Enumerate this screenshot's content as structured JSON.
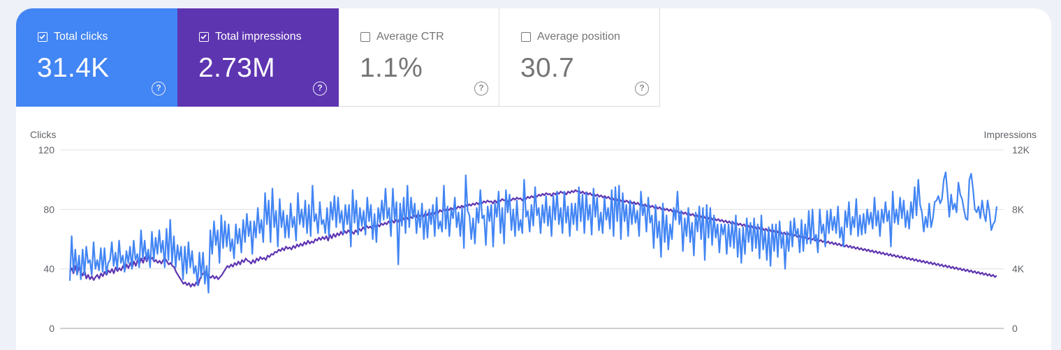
{
  "metrics": [
    {
      "label": "Total clicks",
      "value": "31.4K",
      "checked": true,
      "color": "#4285f4"
    },
    {
      "label": "Total impressions",
      "value": "2.73M",
      "checked": true,
      "color": "#5e35b1"
    },
    {
      "label": "Average CTR",
      "value": "1.1%",
      "checked": false,
      "color": "#ffffff"
    },
    {
      "label": "Average position",
      "value": "30.7",
      "checked": false,
      "color": "#ffffff"
    }
  ],
  "help_icon": "help-circle-icon",
  "chart_data": {
    "type": "line",
    "left_axis_label": "Clicks",
    "right_axis_label": "Impressions",
    "left_ticks": [
      "120",
      "80",
      "40",
      "0"
    ],
    "right_ticks": [
      "12K",
      "8K",
      "4K",
      "0"
    ],
    "left_range": [
      0,
      120
    ],
    "right_range": [
      0,
      12000
    ],
    "grid": true,
    "series": [
      {
        "name": "Clicks",
        "axis": "left",
        "color": "#4285f4",
        "values": [
          32,
          62,
          38,
          53,
          36,
          49,
          33,
          53,
          36,
          55,
          44,
          46,
          36,
          58,
          40,
          46,
          39,
          54,
          38,
          54,
          37,
          44,
          46,
          58,
          42,
          51,
          40,
          59,
          44,
          49,
          38,
          52,
          44,
          55,
          40,
          59,
          46,
          50,
          41,
          66,
          47,
          59,
          46,
          53,
          41,
          65,
          46,
          61,
          50,
          66,
          51,
          59,
          41,
          67,
          46,
          73,
          44,
          62,
          41,
          56,
          46,
          55,
          33,
          55,
          37,
          58,
          41,
          52,
          37,
          42,
          29,
          51,
          34,
          51,
          30,
          42,
          24,
          66,
          50,
          72,
          56,
          66,
          44,
          76,
          54,
          72,
          55,
          70,
          52,
          60,
          47,
          70,
          57,
          67,
          51,
          73,
          58,
          77,
          62,
          72,
          50,
          72,
          61,
          81,
          64,
          73,
          58,
          91,
          70,
          86,
          58,
          94,
          68,
          79,
          55,
          87,
          68,
          79,
          61,
          76,
          61,
          84,
          68,
          75,
          59,
          91,
          70,
          80,
          68,
          86,
          64,
          83,
          62,
          96,
          72,
          77,
          64,
          85,
          70,
          73,
          64,
          81,
          62,
          85,
          73,
          89,
          68,
          88,
          71,
          79,
          64,
          83,
          70,
          83,
          55,
          93,
          71,
          86,
          63,
          81,
          69,
          79,
          63,
          88,
          72,
          83,
          60,
          77,
          58,
          81,
          71,
          86,
          73,
          94,
          74,
          81,
          62,
          94,
          73,
          85,
          43,
          84,
          69,
          88,
          64,
          96,
          68,
          88,
          74,
          84,
          64,
          79,
          68,
          84,
          60,
          79,
          61,
          80,
          70,
          83,
          62,
          88,
          67,
          72,
          65,
          96,
          67,
          82,
          62,
          80,
          74,
          88,
          68,
          78,
          62,
          81,
          54,
          103,
          79,
          76,
          60,
          74,
          57,
          81,
          71,
          93,
          74,
          76,
          56,
          82,
          72,
          83,
          55,
          84,
          75,
          92,
          64,
          81,
          57,
          93,
          78,
          90,
          66,
          80,
          62,
          86,
          66,
          73,
          64,
          100,
          75,
          79,
          65,
          83,
          69,
          95,
          76,
          81,
          64,
          83,
          71,
          89,
          69,
          82,
          62,
          89,
          73,
          92,
          70,
          81,
          64,
          92,
          71,
          82,
          62,
          84,
          70,
          84,
          66,
          95,
          72,
          90,
          64,
          91,
          73,
          83,
          63,
          94,
          75,
          88,
          66,
          78,
          64,
          88,
          73,
          81,
          67,
          93,
          62,
          95,
          72,
          96,
          60,
          91,
          72,
          83,
          62,
          86,
          70,
          84,
          71,
          79,
          62,
          92,
          76,
          83,
          65,
          88,
          71,
          76,
          54,
          83,
          61,
          72,
          48,
          84,
          58,
          76,
          53,
          70,
          60,
          81,
          73,
          92,
          70,
          79,
          52,
          74,
          62,
          81,
          58,
          71,
          49,
          78,
          65,
          82,
          60,
          81,
          46,
          83,
          61,
          81,
          56,
          76,
          61,
          70,
          51,
          70,
          63,
          70,
          50,
          70,
          55,
          72,
          54,
          76,
          48,
          67,
          44,
          68,
          50,
          74,
          58,
          71,
          52,
          74,
          54,
          70,
          47,
          76,
          53,
          66,
          46,
          68,
          42,
          70,
          52,
          70,
          48,
          72,
          54,
          64,
          40,
          65,
          52,
          72,
          55,
          74,
          62,
          67,
          51,
          73,
          52,
          70,
          57,
          79,
          57,
          80,
          59,
          63,
          51,
          80,
          64,
          70,
          55,
          79,
          64,
          80,
          66,
          75,
          64,
          82,
          61,
          68,
          55,
          79,
          68,
          85,
          63,
          75,
          68,
          87,
          62,
          76,
          63,
          77,
          64,
          80,
          70,
          78,
          67,
          88,
          69,
          79,
          62,
          80,
          71,
          85,
          72,
          79,
          55,
          92,
          71,
          80,
          70,
          88,
          74,
          86,
          68,
          79,
          67,
          85,
          74,
          95,
          76,
          100,
          83,
          78,
          65,
          75,
          68,
          84,
          68,
          74,
          85,
          86,
          89,
          84,
          87,
          100,
          105,
          91,
          75,
          90,
          80,
          84,
          78,
          98,
          90,
          87,
          80,
          74,
          73,
          100,
          104,
          94,
          80,
          78,
          82,
          74,
          86,
          77,
          72,
          86,
          78,
          66,
          70,
          72,
          82
        ]
      },
      {
        "name": "Impressions",
        "axis": "right",
        "color": "#5e35b1",
        "values": [
          3800,
          4050,
          3700,
          4200,
          3650,
          4100,
          3800,
          3550,
          3900,
          3350,
          3600,
          3300,
          3500,
          3250,
          3450,
          3600,
          3350,
          3700,
          3500,
          3800,
          3600,
          3900,
          3750,
          4000,
          3700,
          4100,
          3850,
          4050,
          3900,
          4200,
          3950,
          4300,
          4050,
          4400,
          4100,
          4500,
          4200,
          4600,
          4350,
          4700,
          4400,
          4800,
          4500,
          4900,
          4650,
          4750,
          4500,
          4600,
          4400,
          4550,
          4350,
          4600,
          4700,
          4500,
          4300,
          4400,
          4200,
          4100,
          3800,
          3600,
          3400,
          3200,
          3000,
          3100,
          2900,
          3050,
          2800,
          3000,
          2850,
          3100,
          2900,
          3300,
          3600,
          3700,
          3800,
          3650,
          3500,
          3400,
          3550,
          3350,
          3500,
          3300,
          3450,
          3600,
          3800,
          4000,
          4200,
          4100,
          4300,
          4150,
          4400,
          4250,
          4500,
          4300,
          4600,
          4450,
          4700,
          4550,
          4500,
          4350,
          4600,
          4400,
          4700,
          4550,
          4800,
          4650,
          4750,
          4600,
          4900,
          4800,
          5000,
          4950,
          5150,
          5100,
          5300,
          5200,
          5400,
          5250,
          5500,
          5350,
          5450,
          5300,
          5550,
          5400,
          5650,
          5500,
          5700,
          5550,
          5800,
          5650,
          5900,
          5700,
          5850,
          5750,
          6000,
          5900,
          6100,
          5950,
          6150,
          6000,
          6200,
          5900,
          6300,
          6050,
          6350,
          6150,
          6400,
          6250,
          6500,
          6300,
          6550,
          6400,
          6600,
          6450,
          6500,
          6350,
          6600,
          6450,
          6700,
          6550,
          6800,
          6650,
          6900,
          6750,
          6850,
          6700,
          6950,
          6800,
          7000,
          6850,
          7050,
          6950,
          7100,
          7000,
          7200,
          7050,
          7250,
          7100,
          7300,
          7150,
          7350,
          7200,
          7400,
          7250,
          7450,
          7300,
          7500,
          7400,
          7600,
          7450,
          7700,
          7550,
          7650,
          7500,
          7750,
          7600,
          7800,
          7650,
          7850,
          7700,
          7900,
          7750,
          7950,
          7850,
          8000,
          7900,
          8050,
          7950,
          8100,
          8000,
          8150,
          8050,
          8200,
          8100,
          8250,
          8150,
          8300,
          8200,
          8350,
          8250,
          8400,
          8300,
          8450,
          8350,
          8500,
          8400,
          8550,
          8450,
          8600,
          8500,
          8550,
          8400,
          8600,
          8450,
          8650,
          8550,
          8700,
          8600,
          8650,
          8500,
          8700,
          8600,
          8750,
          8650,
          8800,
          8700,
          8750,
          8600,
          8800,
          8700,
          8850,
          8750,
          8900,
          8800,
          8950,
          8850,
          9000,
          8900,
          9050,
          8950,
          9100,
          9000,
          9050,
          8900,
          9100,
          9000,
          9150,
          9050,
          9200,
          9100,
          9150,
          9000,
          9200,
          9100,
          9250,
          9150,
          9300,
          9200,
          9250,
          9100,
          9200,
          9050,
          9150,
          9000,
          9100,
          8950,
          9050,
          8900,
          9000,
          8850,
          8950,
          8800,
          8900,
          8750,
          8850,
          8700,
          8800,
          8650,
          8750,
          8600,
          8700,
          8550,
          8650,
          8500,
          8600,
          8450,
          8550,
          8400,
          8500,
          8350,
          8450,
          8300,
          8400,
          8250,
          8350,
          8200,
          8300,
          8150,
          8250,
          8100,
          8200,
          8050,
          8150,
          8000,
          8100,
          7950,
          8050,
          7900,
          8000,
          7850,
          7950,
          7800,
          7900,
          7750,
          7850,
          7700,
          7800,
          7650,
          7750,
          7600,
          7700,
          7550,
          7650,
          7500,
          7600,
          7450,
          7550,
          7400,
          7500,
          7350,
          7450,
          7300,
          7400,
          7250,
          7350,
          7200,
          7300,
          7150,
          7250,
          7100,
          7200,
          7050,
          7150,
          7000,
          7100,
          6950,
          7050,
          6900,
          7000,
          6850,
          6950,
          6800,
          6900,
          6750,
          6850,
          6700,
          6800,
          6650,
          6750,
          6600,
          6700,
          6550,
          6650,
          6500,
          6600,
          6450,
          6550,
          6400,
          6500,
          6350,
          6450,
          6300,
          6400,
          6250,
          6350,
          6200,
          6300,
          6150,
          6250,
          6100,
          6200,
          6050,
          6150,
          6000,
          6100,
          5950,
          6050,
          5900,
          6000,
          5850,
          5950,
          5800,
          5900,
          5750,
          5850,
          5700,
          5800,
          5650,
          5750,
          5600,
          5700,
          5550,
          5650,
          5500,
          5600,
          5450,
          5550,
          5400,
          5500,
          5350,
          5450,
          5300,
          5400,
          5250,
          5350,
          5200,
          5300,
          5150,
          5250,
          5100,
          5200,
          5050,
          5150,
          5000,
          5100,
          4950,
          5050,
          4900,
          5000,
          4850,
          4950,
          4800,
          4900,
          4750,
          4850,
          4700,
          4800,
          4650,
          4750,
          4600,
          4700,
          4550,
          4650,
          4500,
          4600,
          4450,
          4550,
          4400,
          4500,
          4350,
          4450,
          4300,
          4400,
          4250,
          4350,
          4200,
          4300,
          4150,
          4250,
          4100,
          4200,
          4050,
          4150,
          4000,
          4100,
          3950,
          4050,
          3900,
          4000,
          3850,
          3950,
          3800,
          3900,
          3750,
          3850,
          3700,
          3800,
          3650,
          3750,
          3600,
          3700,
          3550,
          3650,
          3500,
          3600,
          3450,
          3550
        ]
      }
    ]
  }
}
